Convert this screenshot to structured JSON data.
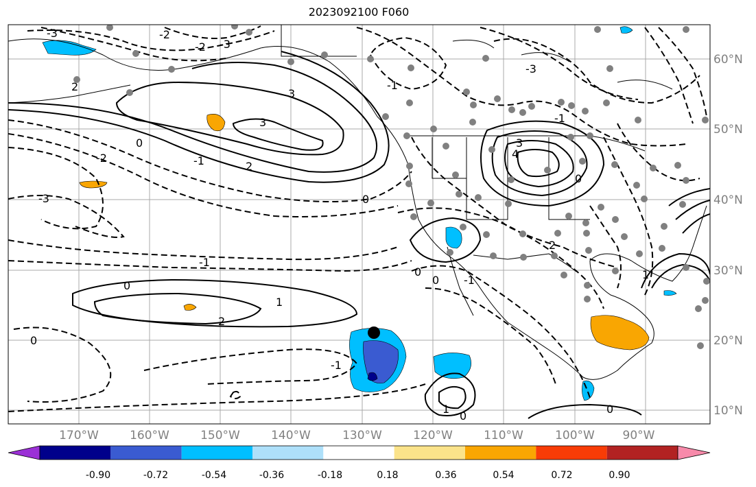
{
  "title": "2023092100 F060",
  "lon_labels": [
    "170°W",
    "160°W",
    "150°W",
    "140°W",
    "130°W",
    "120°W",
    "110°W",
    "100°W",
    "90°W"
  ],
  "lat_labels": [
    "60°N",
    "50°N",
    "40°N",
    "30°N",
    "20°N",
    "10°N"
  ],
  "contour_labels": [
    "-3",
    "-2",
    "-2",
    "-3",
    "-3",
    "-2",
    "-1",
    "0",
    "0",
    "-1",
    "-1",
    "0",
    "0",
    "0",
    "1",
    "2",
    "-1",
    "0",
    "1",
    "0",
    "2",
    "3",
    "2",
    "3",
    "4",
    "-3",
    "-1",
    "0",
    "1",
    "0",
    "-1",
    "2",
    "3"
  ],
  "colorbar": {
    "tick_labels": [
      "-0.90",
      "-0.72",
      "-0.54",
      "-0.36",
      "-0.18",
      "0.18",
      "0.36",
      "0.54",
      "0.72",
      "0.90"
    ],
    "colors": [
      "#9b30d6",
      "#00008b",
      "#3a5bd1",
      "#00bfff",
      "#aee0fa",
      "#ffffff",
      "#fbe38a",
      "#f9a602",
      "#f83c06",
      "#b22222",
      "#f78aaa"
    ]
  },
  "colors": {
    "contour": "#000000",
    "grid": "#a9a9a9",
    "station": "#808080",
    "marker": "#000000",
    "coast": "#000000"
  }
}
